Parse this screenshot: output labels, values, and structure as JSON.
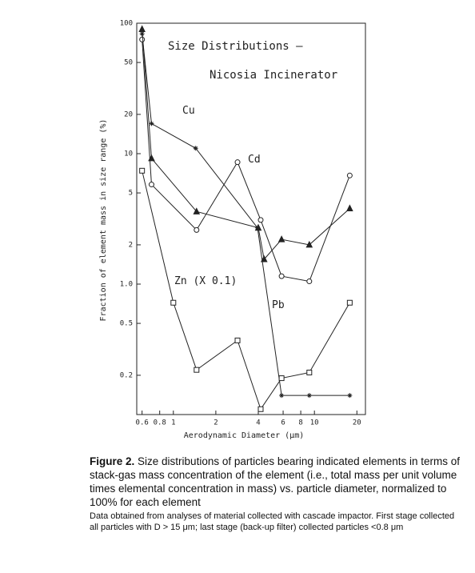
{
  "chart_data": {
    "type": "line",
    "title": [
      "Size Distributions –",
      "Nicosia Incinerator"
    ],
    "x_label": "Aerodynamic Diameter (μm)",
    "y_label": "Fraction of element mass in size range (%)",
    "xscale": "log",
    "yscale": "log",
    "xlim": [
      0.55,
      23
    ],
    "ylim": [
      0.1,
      100
    ],
    "xticks": [
      0.6,
      0.8,
      1,
      2,
      4,
      6,
      8,
      10,
      20
    ],
    "yticks": [
      0.2,
      0.5,
      {
        "value": 1,
        "label": "1.0"
      },
      2,
      5,
      10,
      20,
      50,
      100
    ],
    "series": [
      {
        "name": "Cu",
        "color": "#222",
        "marker": "star",
        "x": [
          0.6,
          0.7,
          1.44,
          3.95,
          5.85,
          9.2,
          17.8
        ],
        "values": [
          83,
          17,
          11,
          2.7,
          0.14,
          0.14,
          0.14
        ]
      },
      {
        "name": "Cd",
        "color": "#222",
        "marker": "circle",
        "x": [
          0.6,
          0.7,
          1.46,
          2.85,
          4.16,
          5.85,
          9.2,
          17.8
        ],
        "values": [
          75,
          5.8,
          2.6,
          8.6,
          3.1,
          1.15,
          1.05,
          6.8
        ]
      },
      {
        "name": "Zn (X 0.1)",
        "color": "#222",
        "marker": "square",
        "x": [
          0.6,
          1.0,
          1.46,
          2.85,
          4.16,
          5.85,
          9.2,
          17.8
        ],
        "values": [
          7.4,
          0.72,
          0.22,
          0.37,
          0.11,
          0.19,
          0.21,
          0.72
        ]
      },
      {
        "name": "Pb",
        "color": "#222",
        "marker": "triangle",
        "x": [
          0.6,
          0.7,
          1.46,
          4.0,
          4.4,
          5.85,
          9.2,
          17.8
        ],
        "values": [
          90,
          9.2,
          3.6,
          2.7,
          1.55,
          2.2,
          2.0,
          3.8
        ]
      }
    ]
  },
  "caption": {
    "label": "Figure 2.",
    "text": "Size distributions of particles bearing indicated elements in terms of stack-gas mass concentration of the element (i.e., total mass per unit volume times elemental concentration in mass) vs. particle diameter, normalized to 100% for each element",
    "note": "Data obtained from analyses of material collected with cascade impactor. First stage collected all particles with D > 15 μm; last stage (back-up filter) collected particles <0.8 μm"
  }
}
